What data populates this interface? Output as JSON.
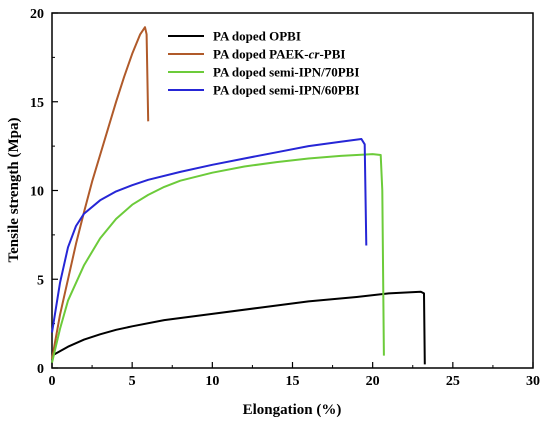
{
  "chart_data": {
    "type": "line",
    "xlabel": "Elongation (%)",
    "ylabel": "Tensile strength (Mpa)",
    "xlim": [
      0,
      30
    ],
    "ylim": [
      0,
      20
    ],
    "xticks": [
      0,
      5,
      10,
      15,
      20,
      25,
      30
    ],
    "yticks": [
      0,
      5,
      10,
      15,
      20
    ],
    "grid": false,
    "legend": "top-center",
    "series": [
      {
        "name": "PA doped OPBI",
        "name_parts": [
          {
            "text": "PA doped OPBI",
            "italic": false
          }
        ],
        "color": "#000000",
        "points": [
          [
            0,
            0.7
          ],
          [
            1,
            1.2
          ],
          [
            2,
            1.6
          ],
          [
            3,
            1.9
          ],
          [
            4,
            2.15
          ],
          [
            5,
            2.35
          ],
          [
            7,
            2.7
          ],
          [
            10,
            3.05
          ],
          [
            13,
            3.4
          ],
          [
            16,
            3.75
          ],
          [
            19,
            4.0
          ],
          [
            21,
            4.2
          ],
          [
            23,
            4.3
          ],
          [
            23.2,
            4.2
          ],
          [
            23.25,
            0.2
          ]
        ]
      },
      {
        "name": "PA doped PAEK-cr-PBI",
        "name_parts": [
          {
            "text": "PA doped PAEK-",
            "italic": false
          },
          {
            "text": "cr",
            "italic": true
          },
          {
            "text": "-PBI",
            "italic": false
          }
        ],
        "color": "#b05a2a",
        "points": [
          [
            0,
            0.5
          ],
          [
            0.5,
            3.0
          ],
          [
            1,
            5.0
          ],
          [
            1.5,
            7.0
          ],
          [
            2,
            8.8
          ],
          [
            2.5,
            10.5
          ],
          [
            3,
            12.0
          ],
          [
            3.5,
            13.5
          ],
          [
            4,
            15.0
          ],
          [
            4.5,
            16.4
          ],
          [
            5,
            17.7
          ],
          [
            5.5,
            18.8
          ],
          [
            5.8,
            19.2
          ],
          [
            5.9,
            18.8
          ],
          [
            6.0,
            13.9
          ]
        ]
      },
      {
        "name": "PA doped semi-IPN/70PBI",
        "name_parts": [
          {
            "text": "PA doped semi-IPN/70PBI",
            "italic": false
          }
        ],
        "color": "#6ccb3a",
        "points": [
          [
            0,
            0.3
          ],
          [
            0.5,
            2.2
          ],
          [
            1,
            3.8
          ],
          [
            2,
            5.8
          ],
          [
            3,
            7.3
          ],
          [
            4,
            8.4
          ],
          [
            5,
            9.2
          ],
          [
            6,
            9.75
          ],
          [
            7,
            10.2
          ],
          [
            8,
            10.55
          ],
          [
            10,
            11.0
          ],
          [
            12,
            11.35
          ],
          [
            14,
            11.6
          ],
          [
            16,
            11.8
          ],
          [
            18,
            11.95
          ],
          [
            20,
            12.05
          ],
          [
            20.5,
            12.0
          ],
          [
            20.6,
            10.0
          ],
          [
            20.7,
            0.7
          ]
        ]
      },
      {
        "name": "PA doped semi-IPN/60PBI",
        "name_parts": [
          {
            "text": "PA doped semi-IPN/60PBI",
            "italic": false
          }
        ],
        "color": "#2626d6",
        "points": [
          [
            0,
            2.0
          ],
          [
            0.5,
            4.8
          ],
          [
            1,
            6.8
          ],
          [
            1.5,
            8.0
          ],
          [
            2,
            8.7
          ],
          [
            3,
            9.45
          ],
          [
            4,
            9.95
          ],
          [
            5,
            10.3
          ],
          [
            6,
            10.6
          ],
          [
            8,
            11.05
          ],
          [
            10,
            11.45
          ],
          [
            12,
            11.8
          ],
          [
            14,
            12.15
          ],
          [
            16,
            12.5
          ],
          [
            18,
            12.75
          ],
          [
            19.3,
            12.9
          ],
          [
            19.5,
            12.6
          ],
          [
            19.6,
            6.9
          ]
        ]
      }
    ]
  }
}
